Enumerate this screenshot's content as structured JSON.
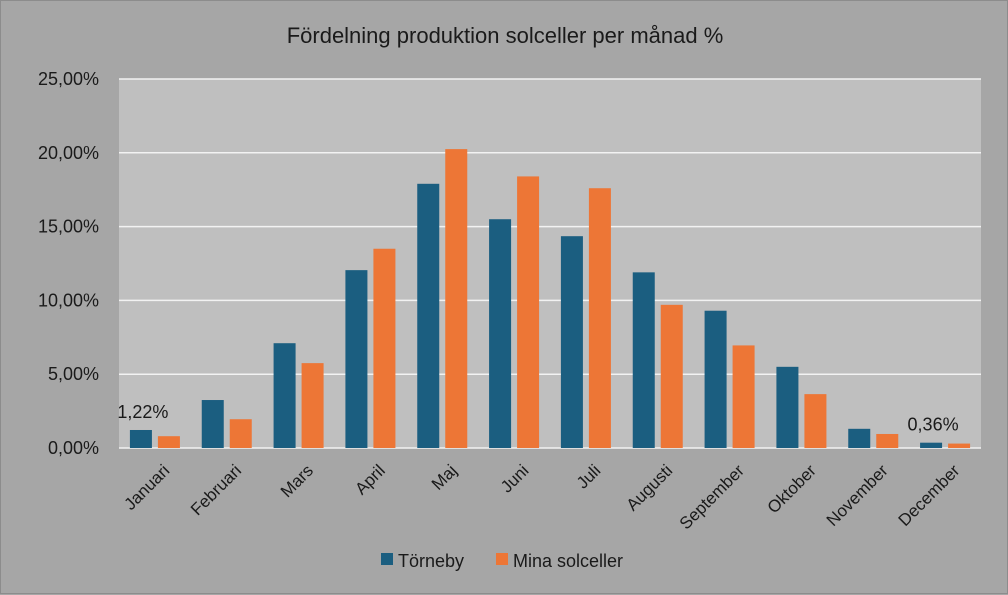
{
  "chart_data": {
    "type": "bar",
    "title": "Fördelning produktion solceller per månad %",
    "xlabel": "",
    "ylabel": "",
    "ylim": [
      0,
      25
    ],
    "yticks": [
      {
        "value": 0,
        "label": "0,00%"
      },
      {
        "value": 5,
        "label": "5,00%"
      },
      {
        "value": 10,
        "label": "10,00%"
      },
      {
        "value": 15,
        "label": "15,00%"
      },
      {
        "value": 20,
        "label": "20,00%"
      },
      {
        "value": 25,
        "label": "25,00%"
      }
    ],
    "grid": true,
    "legend_position": "bottom",
    "categories": [
      "Januari",
      "Februari",
      "Mars",
      "April",
      "Maj",
      "Juni",
      "Juli",
      "Augusti",
      "September",
      "Oktober",
      "November",
      "December"
    ],
    "series": [
      {
        "name": "Törneby",
        "color": "#1b5e80",
        "values": [
          1.22,
          3.25,
          7.1,
          12.05,
          17.9,
          15.5,
          14.35,
          11.9,
          9.3,
          5.5,
          1.3,
          0.36
        ]
      },
      {
        "name": "Mina solceller",
        "color": "#ed7636",
        "values": [
          0.8,
          1.95,
          5.75,
          13.5,
          20.25,
          18.4,
          17.6,
          9.7,
          6.95,
          3.65,
          0.95,
          0.3
        ]
      }
    ],
    "data_labels": [
      {
        "series": 0,
        "index": 0,
        "text": "1,22%"
      },
      {
        "series": 0,
        "index": 11,
        "text": "0,36%"
      }
    ]
  },
  "colors": {
    "background": "#a6a6a6",
    "plot_background": "#bfbfbf",
    "gridline": "#f2f2f2"
  }
}
